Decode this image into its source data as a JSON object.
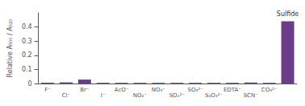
{
  "chart_data": {
    "type": "bar",
    "categories": [
      "F⁻",
      "Cl⁻",
      "Br⁻",
      "I⁻",
      "AcO⁻",
      "NO₂⁻",
      "NO₃⁻",
      "SO₄²⁻",
      "SO₃²⁻",
      "S₂O₃²⁻",
      "EDTA⁻",
      "SCN⁻",
      "CO₃²⁻",
      null
    ],
    "values": [
      0.005,
      0.008,
      0.028,
      0.005,
      0.005,
      0.005,
      0.005,
      0.005,
      0.005,
      0.005,
      0.005,
      0.007,
      0.005,
      0.44
    ],
    "color": "#6A3D8A",
    "ylabel": "Relative A₅₀₀ / A₅₂₀",
    "ylim": [
      0,
      0.5
    ],
    "yticks": [
      0,
      0.1,
      0.2,
      0.3,
      0.4
    ],
    "grid": false,
    "annotations": [
      {
        "text": "Sulfide",
        "category_index": 13
      }
    ]
  }
}
